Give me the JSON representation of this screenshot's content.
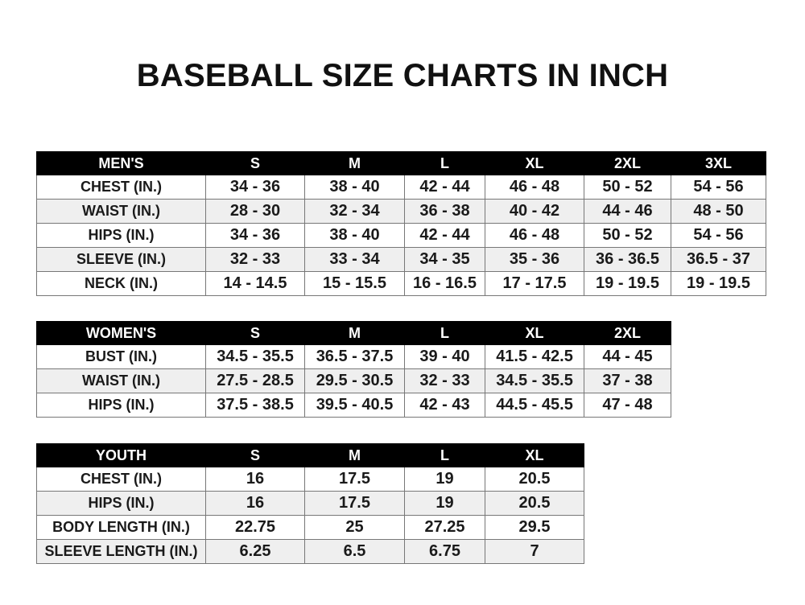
{
  "title": "BASEBALL SIZE CHARTS IN INCH",
  "mens": {
    "header": [
      "MEN'S",
      "S",
      "M",
      "L",
      "XL",
      "2XL",
      "3XL"
    ],
    "rows": [
      [
        "CHEST (IN.)",
        "34 - 36",
        "38 - 40",
        "42 - 44",
        "46 - 48",
        "50 - 52",
        "54 - 56"
      ],
      [
        "WAIST (IN.)",
        "28 - 30",
        "32 - 34",
        "36 - 38",
        "40 - 42",
        "44 - 46",
        "48 - 50"
      ],
      [
        "HIPS (IN.)",
        "34 - 36",
        "38 - 40",
        "42 - 44",
        "46 - 48",
        "50 - 52",
        "54 - 56"
      ],
      [
        "SLEEVE (IN.)",
        "32 - 33",
        "33 - 34",
        "34 - 35",
        "35 - 36",
        "36 - 36.5",
        "36.5 - 37"
      ],
      [
        "NECK (IN.)",
        "14 - 14.5",
        "15 - 15.5",
        "16 - 16.5",
        "17 - 17.5",
        "19 - 19.5",
        "19 - 19.5"
      ]
    ]
  },
  "womens": {
    "header": [
      "WOMEN'S",
      "S",
      "M",
      "L",
      "XL",
      "2XL"
    ],
    "rows": [
      [
        "BUST (IN.)",
        "34.5 - 35.5",
        "36.5 - 37.5",
        "39 - 40",
        "41.5 - 42.5",
        "44 - 45"
      ],
      [
        "WAIST (IN.)",
        "27.5 - 28.5",
        "29.5 - 30.5",
        "32 - 33",
        "34.5 - 35.5",
        "37 - 38"
      ],
      [
        "HIPS (IN.)",
        "37.5 - 38.5",
        "39.5 - 40.5",
        "42 - 43",
        "44.5 - 45.5",
        "47 - 48"
      ]
    ]
  },
  "youth": {
    "header": [
      "YOUTH",
      "S",
      "M",
      "L",
      "XL"
    ],
    "rows": [
      [
        "CHEST (IN.)",
        "16",
        "17.5",
        "19",
        "20.5"
      ],
      [
        "HIPS (IN.)",
        "16",
        "17.5",
        "19",
        "20.5"
      ],
      [
        "BODY LENGTH (IN.)",
        "22.75",
        "25",
        "27.25",
        "29.5"
      ],
      [
        "SLEEVE LENGTH (IN.)",
        "6.25",
        "6.5",
        "6.75",
        "7"
      ]
    ]
  }
}
